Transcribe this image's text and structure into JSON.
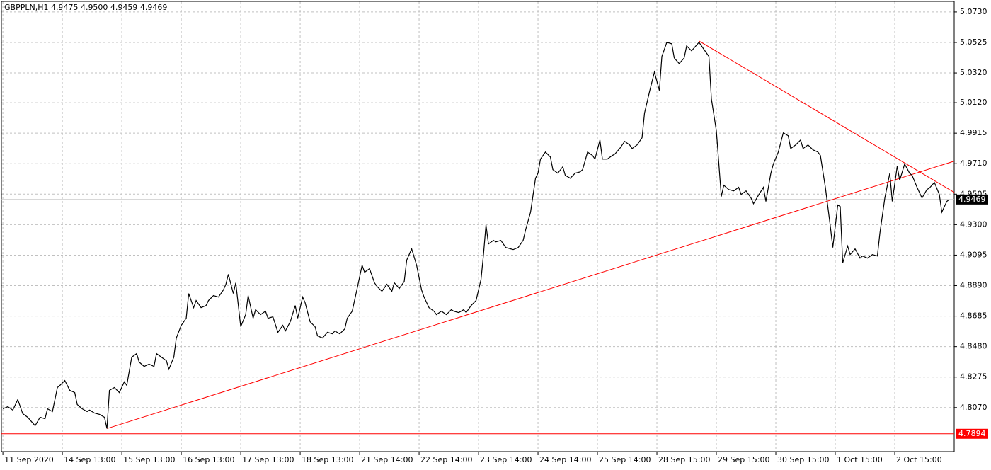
{
  "chart_data": {
    "type": "line",
    "title": "GBPPLN,H1  4.9475 4.9500 4.9459 4.9469",
    "series": [
      {
        "name": "GBPPLN",
        "color": "#000000",
        "x": [
          0,
          2,
          4,
          6,
          8,
          10,
          13,
          15,
          17,
          18,
          20,
          22,
          23,
          25,
          27,
          29,
          30,
          32,
          34,
          35,
          37,
          39,
          41,
          42,
          43,
          45,
          47,
          49,
          50,
          52,
          54,
          55,
          57,
          59,
          61,
          62,
          64,
          66,
          67,
          69,
          70,
          72,
          74,
          75,
          77,
          78,
          80,
          82,
          83,
          85,
          87,
          89,
          90,
          91,
          93,
          94,
          96,
          98,
          99,
          101,
          102,
          104,
          106,
          107,
          109,
          111,
          113,
          114,
          116,
          118,
          119,
          121,
          122,
          124,
          126,
          127,
          129,
          131,
          133,
          134,
          136,
          138,
          139,
          141,
          143,
          145,
          146,
          148,
          150,
          151,
          153,
          155,
          157,
          158,
          160,
          162,
          163,
          165,
          167,
          169,
          170,
          172,
          174,
          175,
          177,
          179,
          181,
          182,
          184,
          186,
          187,
          189,
          191,
          193,
          194,
          195,
          196,
          198,
          199,
          201,
          203,
          205,
          206,
          208,
          210,
          211,
          213,
          215,
          216,
          217,
          219,
          221,
          222,
          224,
          226,
          227,
          229,
          231,
          233,
          234,
          236,
          238,
          239,
          241,
          242,
          244,
          246,
          247,
          249,
          251,
          253,
          254,
          256,
          258,
          259,
          261,
          263,
          265,
          266,
          268,
          270,
          271,
          273,
          275,
          276,
          278,
          279,
          281,
          283,
          285,
          286,
          288,
          290,
          291,
          293,
          295,
          297,
          298,
          300,
          302,
          303,
          305,
          307,
          308,
          310,
          311,
          313,
          315,
          317,
          318,
          320,
          322,
          323,
          325,
          327,
          329,
          330,
          332,
          334,
          335,
          337,
          338,
          339,
          341,
          342,
          344,
          346,
          347,
          349,
          351,
          353,
          354,
          356,
          358,
          359,
          361,
          362,
          364,
          366,
          367,
          369,
          371,
          373,
          374,
          376,
          378,
          379,
          381,
          382
        ],
        "values": [
          4.8062,
          4.8076,
          4.8053,
          4.8124,
          4.8029,
          4.8005,
          4.7948,
          4.8005,
          4.7995,
          4.8062,
          4.8043,
          4.8205,
          4.8219,
          4.8252,
          4.8186,
          4.8171,
          4.8091,
          4.8062,
          4.8043,
          4.8053,
          4.8033,
          4.8024,
          4.8005,
          4.7929,
          4.8186,
          4.8205,
          4.8171,
          4.8243,
          4.8219,
          4.8409,
          4.8433,
          4.8376,
          4.8347,
          4.8362,
          4.8347,
          4.8433,
          4.8409,
          4.8385,
          4.8328,
          4.8409,
          4.8538,
          4.8623,
          4.8671,
          4.8837,
          4.8742,
          4.879,
          4.8742,
          4.8756,
          4.879,
          4.8823,
          4.8813,
          4.8861,
          4.8899,
          4.8966,
          4.8837,
          4.8909,
          4.8614,
          4.8695,
          4.8823,
          4.8671,
          4.8728,
          4.8695,
          4.8718,
          4.8671,
          4.868,
          4.8576,
          4.8623,
          4.8585,
          4.8647,
          4.8756,
          4.8671,
          4.8813,
          4.8775,
          4.8647,
          4.8614,
          4.8552,
          4.8538,
          4.8576,
          4.8566,
          4.8585,
          4.8566,
          4.8599,
          4.8671,
          4.8718,
          4.8871,
          4.9027,
          4.898,
          4.9004,
          4.8909,
          4.8885,
          4.8852,
          4.8899,
          4.8852,
          4.8909,
          4.8871,
          4.8918,
          4.9061,
          4.9137,
          4.9027,
          4.8861,
          4.8813,
          4.8742,
          4.8718,
          4.8695,
          4.8718,
          4.8695,
          4.8728,
          4.8718,
          4.8709,
          4.8728,
          4.8709,
          4.8756,
          4.879,
          4.8932,
          4.9099,
          4.9299,
          4.917,
          4.9194,
          4.9184,
          4.9194,
          4.9146,
          4.9137,
          4.9132,
          4.9146,
          4.9194,
          4.9265,
          4.9384,
          4.9612,
          4.9646,
          4.9741,
          4.9788,
          4.9755,
          4.967,
          4.9646,
          4.9689,
          4.9632,
          4.9612,
          4.9646,
          4.9655,
          4.967,
          4.9788,
          4.9765,
          4.9741,
          4.9869,
          4.9741,
          4.9741,
          4.9765,
          4.9774,
          4.9812,
          4.986,
          4.9836,
          4.9812,
          4.9836,
          4.9884,
          5.005,
          5.0193,
          5.0326,
          5.0202,
          5.0431,
          5.0526,
          5.0516,
          5.0421,
          5.0383,
          5.0421,
          5.0502,
          5.0469,
          5.0488,
          5.0526,
          5.0478,
          5.0431,
          5.0145,
          4.9931,
          4.9489,
          4.9565,
          4.9536,
          4.9527,
          4.9551,
          4.9503,
          4.9527,
          4.9479,
          4.9441,
          4.9498,
          4.9551,
          4.9456,
          4.9646,
          4.9708,
          4.9788,
          4.9917,
          4.9898,
          4.9812,
          4.9836,
          4.9869,
          4.9812,
          4.9836,
          4.9803,
          4.9788,
          4.9765,
          4.9551,
          4.9289,
          4.9146,
          4.9432,
          4.9422,
          4.9042,
          4.9156,
          4.9099,
          4.9137,
          4.9075,
          4.9089,
          4.9075,
          4.9099,
          4.9089,
          4.9242,
          4.9479,
          4.9646,
          4.9456,
          4.9693,
          4.9598,
          4.9708,
          4.9646,
          4.9632,
          4.9551,
          4.9479,
          4.9536,
          4.9546,
          4.9584,
          4.9503,
          4.9384,
          4.9456,
          4.9469
        ]
      }
    ],
    "xlim": [
      -0.6,
      384
    ],
    "xticks": [
      {
        "value": 0,
        "label": "11 Sep 2020"
      },
      {
        "value": 24,
        "label": "14 Sep 13:00"
      },
      {
        "value": 48,
        "label": "15 Sep 13:00"
      },
      {
        "value": 72,
        "label": "16 Sep 13:00"
      },
      {
        "value": 96,
        "label": "17 Sep 13:00"
      },
      {
        "value": 120,
        "label": "18 Sep 13:00"
      },
      {
        "value": 144,
        "label": "21 Sep 14:00"
      },
      {
        "value": 168,
        "label": "22 Sep 14:00"
      },
      {
        "value": 192,
        "label": "23 Sep 14:00"
      },
      {
        "value": 216,
        "label": "24 Sep 14:00"
      },
      {
        "value": 240,
        "label": "25 Sep 14:00"
      },
      {
        "value": 264,
        "label": "28 Sep 15:00"
      },
      {
        "value": 288,
        "label": "29 Sep 15:00"
      },
      {
        "value": 312,
        "label": "30 Sep 15:00"
      },
      {
        "value": 336,
        "label": "1 Oct 15:00"
      },
      {
        "value": 360,
        "label": "2 Oct 15:00"
      }
    ],
    "ylim": [
      4.7774,
      5.0801
    ],
    "yticks": [
      {
        "value": 5.073,
        "label": "5.0730"
      },
      5.0525,
      {
        "value": 5.032,
        "label": "5.0320"
      },
      {
        "value": 5.012,
        "label": "5.0120"
      },
      4.9915,
      {
        "value": 4.971,
        "label": "4.9710"
      },
      4.9505,
      {
        "value": 4.93,
        "label": "4.9300"
      },
      4.9095,
      {
        "value": 4.889,
        "label": "4.8890"
      },
      4.8685,
      {
        "value": 4.848,
        "label": "4.8480"
      },
      4.8275,
      {
        "value": 4.807,
        "label": "4.8070"
      }
    ],
    "grid": true,
    "current_price": 4.9469,
    "level": {
      "value": 4.7894,
      "color": "#ff0000"
    },
    "trendlines": [
      {
        "color": "#ff0000",
        "x": [
          42,
          384
        ],
        "values": [
          4.7929,
          4.9727
        ]
      },
      {
        "color": "#ff0000",
        "x": [
          281,
          384
        ],
        "values": [
          5.0535,
          4.9517
        ]
      }
    ]
  }
}
